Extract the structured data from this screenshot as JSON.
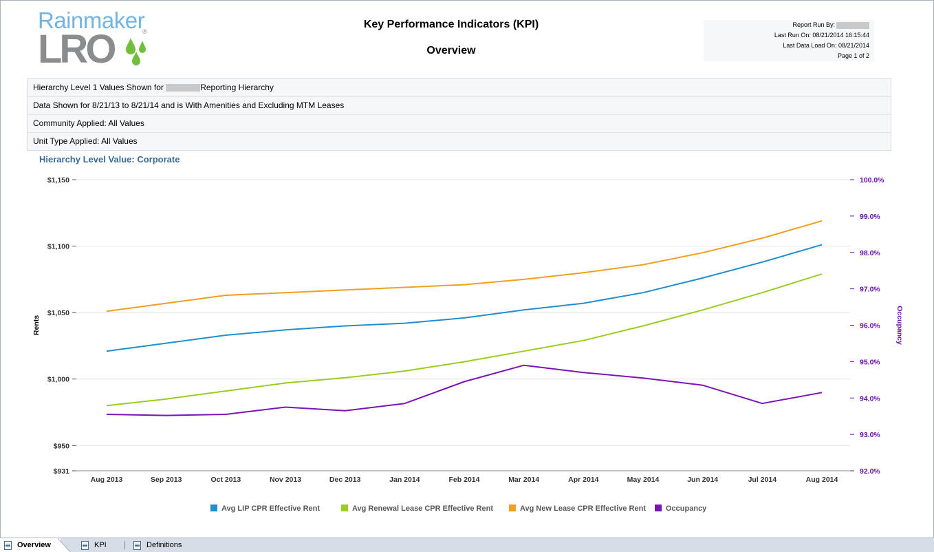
{
  "logo": {
    "top_text": "Rainmaker",
    "bottom_text": "LRO",
    "reg": "®"
  },
  "report": {
    "title": "Key Performance Indicators (KPI)",
    "subtitle": "Overview",
    "run_by_label": "Report Run By:",
    "last_run": "Last Run On: 08/21/2014 16:15:44",
    "last_load": "Last Data Load On: 08/21/2014",
    "page": "Page 1 of 2"
  },
  "params": {
    "line1_prefix": "Hierarchy Level 1 Values Shown for",
    "line1_suffix": "Reporting Hierarchy",
    "line2": "Data Shown for 8/21/13 to 8/21/14 and is With Amenities and Excluding MTM Leases",
    "line3": "Community Applied: All Values",
    "line4": "Unit Type Applied: All Values"
  },
  "hierarchy_value": "Hierarchy Level Value: Corporate",
  "colors": {
    "lip": "#1f8fcf",
    "renewal": "#9acd1f",
    "newlease": "#f0a01e",
    "occupancy": "#7b14b4",
    "right_axis": "#6a0dad"
  },
  "chart_data": {
    "type": "line",
    "categories": [
      "Aug 2013",
      "Sep 2013",
      "Oct 2013",
      "Nov 2013",
      "Dec 2013",
      "Jan 2014",
      "Feb 2014",
      "Mar 2014",
      "Apr 2014",
      "May 2014",
      "Jun 2014",
      "Jul 2014",
      "Aug 2014"
    ],
    "ylabel": "Rents",
    "y2label": "Occupancy",
    "ylim": [
      931,
      1150
    ],
    "y_ticks": [
      931,
      950,
      1000,
      1050,
      1100,
      1150
    ],
    "y_tick_labels": [
      "$931",
      "$950",
      "$1,000",
      "$1,050",
      "$1,100",
      "$1,150"
    ],
    "y2lim": [
      92.0,
      100.0
    ],
    "y2_ticks": [
      92,
      93,
      94,
      95,
      96,
      97,
      98,
      99,
      100
    ],
    "y2_tick_labels": [
      "92.0%",
      "93.0%",
      "94.0%",
      "95.0%",
      "96.0%",
      "97.0%",
      "98.0%",
      "99.0%",
      "100.0%"
    ],
    "grid": true,
    "legend": "bottom",
    "series": [
      {
        "name": "Avg LIP CPR Effective Rent",
        "axis": "left",
        "color": "#1f8fcf",
        "values": [
          1021,
          1027,
          1033,
          1037,
          1040,
          1042,
          1046,
          1052,
          1057,
          1065,
          1076,
          1088,
          1101
        ]
      },
      {
        "name": "Avg Renewal Lease CPR Effective Rent",
        "axis": "left",
        "color": "#9acd1f",
        "values": [
          980,
          985,
          991,
          997,
          1001,
          1006,
          1013,
          1021,
          1029,
          1040,
          1052,
          1065,
          1079
        ]
      },
      {
        "name": "Avg New Lease CPR Effective Rent",
        "axis": "left",
        "color": "#f0a01e",
        "values": [
          1051,
          1057,
          1063,
          1065,
          1067,
          1069,
          1071,
          1075,
          1080,
          1086,
          1095,
          1106,
          1119
        ]
      },
      {
        "name": "Occupancy",
        "axis": "right",
        "color": "#7b14b4",
        "values": [
          93.55,
          93.52,
          93.55,
          93.75,
          93.65,
          93.85,
          94.45,
          94.9,
          94.7,
          94.55,
          94.35,
          93.85,
          94.15
        ]
      }
    ]
  },
  "tabs": [
    {
      "label": "Overview"
    },
    {
      "label": "KPI"
    },
    {
      "label": "Definitions"
    }
  ]
}
